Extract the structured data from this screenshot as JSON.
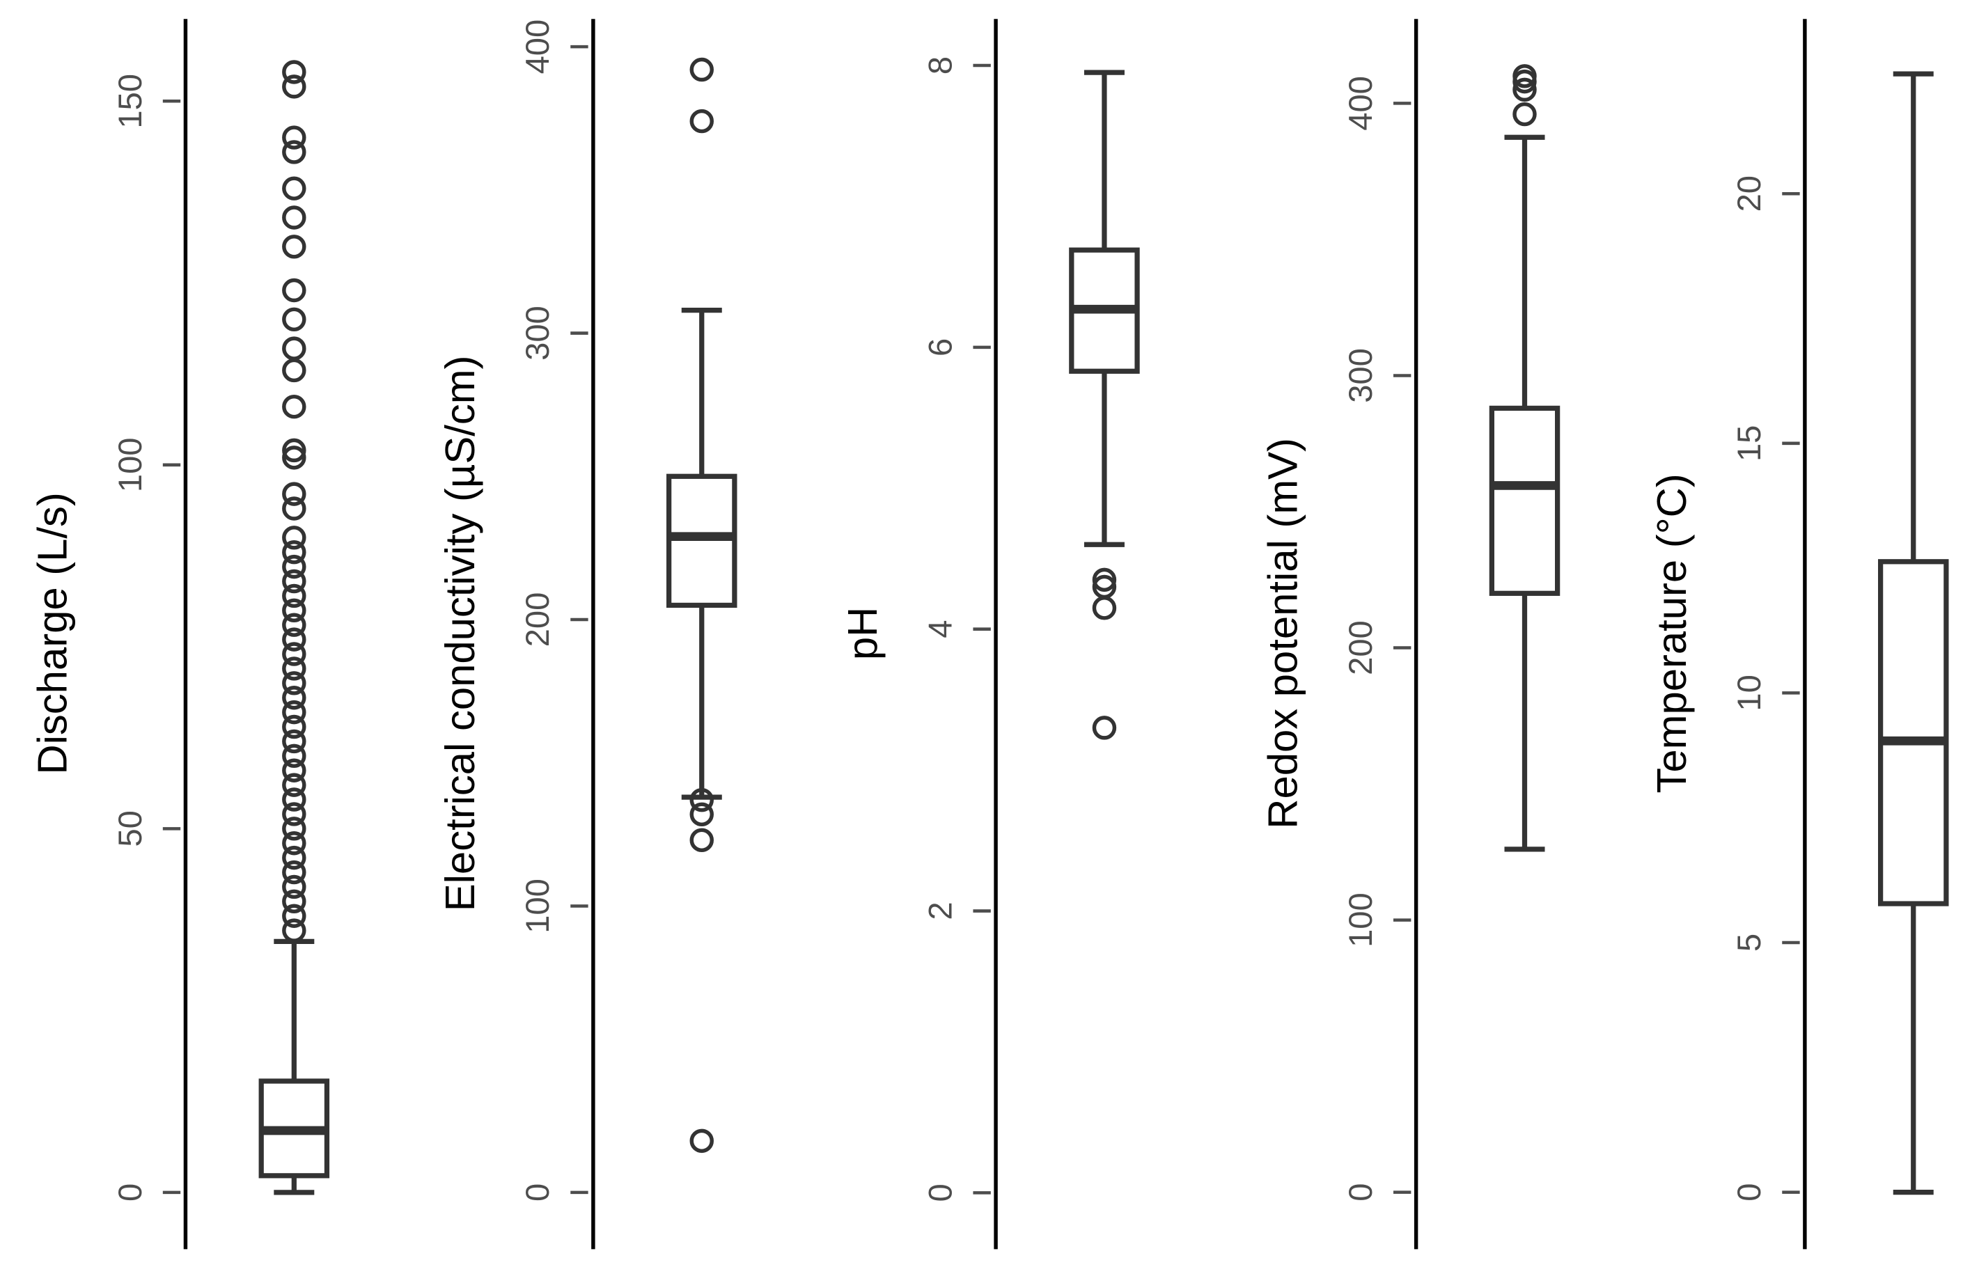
{
  "chart_data": [
    {
      "type": "box",
      "y_label": "Discharge (L/s)",
      "ylim": [
        -7.8,
        161.3
      ],
      "yticks": [
        0,
        50,
        100,
        150
      ],
      "whisker_low": 0,
      "q1": 2.3,
      "median": 8.5,
      "q3": 15.3,
      "whisker_high": 34.5,
      "outliers": [
        36,
        38,
        40,
        42,
        44,
        46,
        48,
        50,
        52,
        54,
        56,
        58,
        60,
        62,
        64,
        66,
        68,
        70,
        72,
        74,
        76,
        78,
        80,
        82,
        84,
        86,
        88,
        90,
        94,
        96,
        101,
        102,
        108,
        113,
        116,
        120,
        124,
        130,
        134,
        138,
        143,
        145,
        152,
        154
      ]
    },
    {
      "type": "box",
      "y_label": "Electrical conductivity (µS/cm)",
      "ylim": [
        -19.8,
        409.7
      ],
      "yticks": [
        0,
        100,
        200,
        300,
        400
      ],
      "whisker_low": 138,
      "q1": 205,
      "median": 229,
      "q3": 250,
      "whisker_high": 308,
      "outliers": [
        392,
        374,
        137,
        132,
        123,
        18
      ]
    },
    {
      "type": "box",
      "y_label": "pH",
      "ylim": [
        -0.4,
        8.33
      ],
      "yticks": [
        0,
        2,
        4,
        6,
        8
      ],
      "whisker_low": 4.6,
      "q1": 5.83,
      "median": 6.27,
      "q3": 6.69,
      "whisker_high": 7.95,
      "outliers": [
        4.35,
        4.3,
        4.15,
        3.3
      ]
    },
    {
      "type": "box",
      "y_label": "Redox potential (mV)",
      "ylim": [
        -20.9,
        431
      ],
      "yticks": [
        0,
        100,
        200,
        300,
        400
      ],
      "whisker_low": 126,
      "q1": 220,
      "median": 259.6,
      "q3": 288,
      "whisker_high": 387.5,
      "outliers": [
        396,
        405,
        408,
        410
      ]
    },
    {
      "type": "box",
      "y_label": "Temperature (°C)",
      "ylim": [
        -1.14,
        23.5
      ],
      "yticks": [
        0,
        5,
        10,
        15,
        20
      ],
      "whisker_low": 0,
      "q1": 5.78,
      "median": 9.04,
      "q3": 12.63,
      "whisker_high": 22.4,
      "outliers": []
    }
  ]
}
